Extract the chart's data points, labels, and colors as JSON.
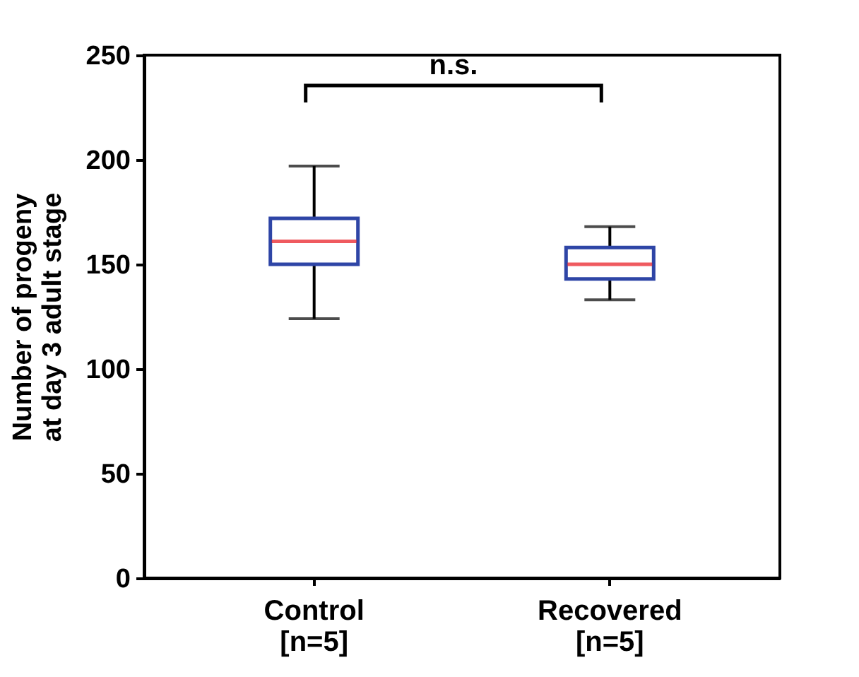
{
  "chart_data": {
    "type": "box",
    "categories": [
      "Control\n[n=5]",
      "Recovered\n[n=5]"
    ],
    "series": [
      {
        "color": "#2e45a6",
        "boxes": [
          {
            "low": 124,
            "q1": 150,
            "median": 161,
            "q3": 172,
            "high": 197
          },
          {
            "low": 133,
            "q1": 143,
            "median": 150,
            "q3": 158,
            "high": 168
          }
        ]
      }
    ],
    "ylabel": "Number of progeny\nat day 3 adult stage",
    "ylim": [
      0,
      250
    ],
    "yticks": [
      0,
      50,
      100,
      150,
      200,
      250
    ],
    "annotations": [
      "n.s."
    ]
  }
}
